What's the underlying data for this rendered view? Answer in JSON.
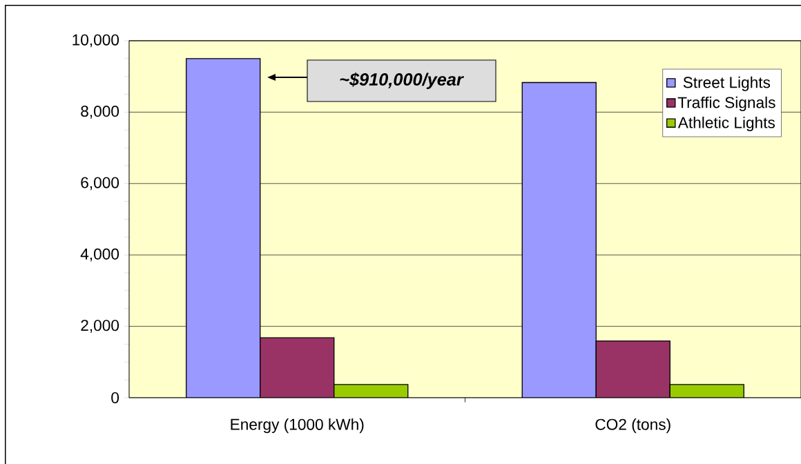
{
  "chart_data": {
    "type": "bar",
    "categories": [
      "Energy (1000 kWh)",
      "CO2 (tons)"
    ],
    "series": [
      {
        "name": "Street Lights",
        "color": "#9999ff",
        "values": [
          9500,
          8830
        ]
      },
      {
        "name": "Traffic Signals",
        "color": "#993366",
        "values": [
          1680,
          1590
        ]
      },
      {
        "name": "Athletic Lights",
        "color": "#99cc00",
        "values": [
          370,
          370
        ]
      }
    ],
    "ylim": [
      0,
      10000
    ],
    "yticks": [
      {
        "value": 0,
        "label": "0"
      },
      {
        "value": 500,
        "label": null
      },
      {
        "value": 1000,
        "label": null
      },
      {
        "value": 1500,
        "label": null
      },
      {
        "value": 2000,
        "label": "2,000"
      },
      {
        "value": 2500,
        "label": null
      },
      {
        "value": 3000,
        "label": null
      },
      {
        "value": 3500,
        "label": null
      },
      {
        "value": 4000,
        "label": "4,000"
      },
      {
        "value": 4500,
        "label": null
      },
      {
        "value": 5000,
        "label": null
      },
      {
        "value": 5500,
        "label": null
      },
      {
        "value": 6000,
        "label": "6,000"
      },
      {
        "value": 6500,
        "label": null
      },
      {
        "value": 7000,
        "label": null
      },
      {
        "value": 7500,
        "label": null
      },
      {
        "value": 8000,
        "label": "8,000"
      },
      {
        "value": 8500,
        "label": null
      },
      {
        "value": 9000,
        "label": null
      },
      {
        "value": 9500,
        "label": null
      },
      {
        "value": 10000,
        "label": "10,000"
      }
    ],
    "grid": "y",
    "legend": "top right",
    "annotations": [
      "**~$910,000/year**"
    ]
  }
}
